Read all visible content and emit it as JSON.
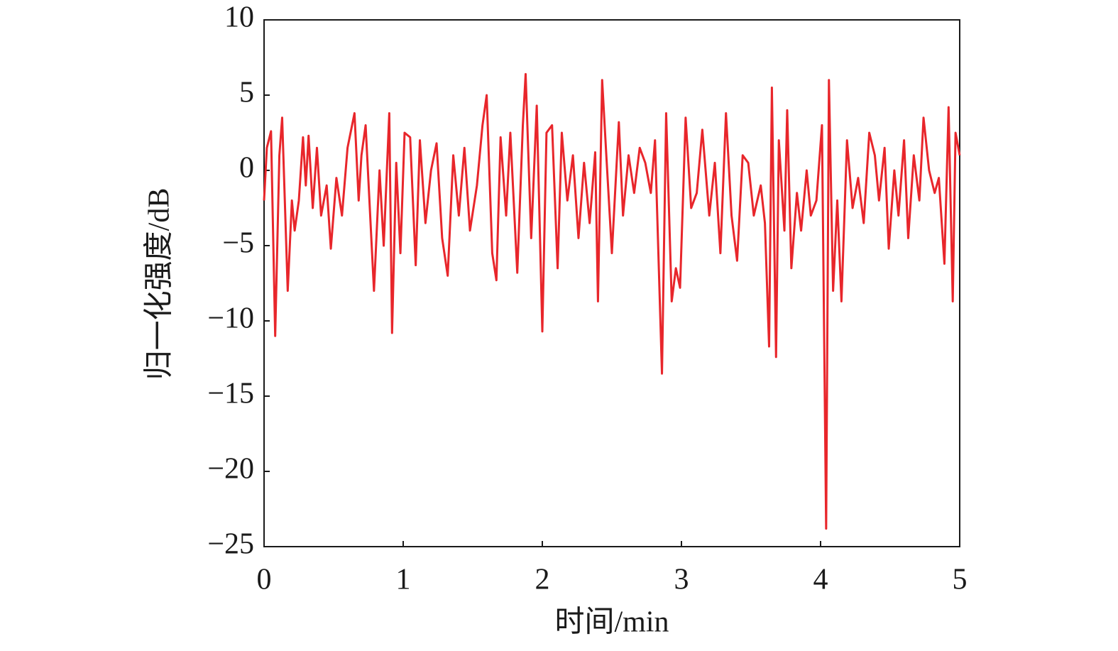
{
  "chart_data": {
    "type": "line",
    "xlabel": "时间/min",
    "ylabel": "归一化强度/dB",
    "color": "#e8262b",
    "x": [
      0,
      0.02,
      0.05,
      0.08,
      0.11,
      0.13,
      0.17,
      0.2,
      0.22,
      0.25,
      0.28,
      0.3,
      0.32,
      0.35,
      0.38,
      0.41,
      0.45,
      0.48,
      0.52,
      0.56,
      0.6,
      0.65,
      0.68,
      0.7,
      0.73,
      0.79,
      0.83,
      0.86,
      0.9,
      0.92,
      0.95,
      0.98,
      1.01,
      1.05,
      1.09,
      1.12,
      1.16,
      1.2,
      1.24,
      1.28,
      1.32,
      1.36,
      1.4,
      1.44,
      1.48,
      1.53,
      1.57,
      1.6,
      1.64,
      1.67,
      1.7,
      1.74,
      1.77,
      1.82,
      1.86,
      1.88,
      1.92,
      1.96,
      2.0,
      2.03,
      2.07,
      2.11,
      2.14,
      2.18,
      2.22,
      2.26,
      2.3,
      2.34,
      2.38,
      2.4,
      2.43,
      2.46,
      2.5,
      2.55,
      2.58,
      2.62,
      2.66,
      2.7,
      2.74,
      2.78,
      2.81,
      2.86,
      2.89,
      2.93,
      2.96,
      2.99,
      3.03,
      3.07,
      3.11,
      3.15,
      3.2,
      3.24,
      3.28,
      3.32,
      3.36,
      3.4,
      3.44,
      3.48,
      3.52,
      3.57,
      3.6,
      3.63,
      3.65,
      3.68,
      3.7,
      3.74,
      3.76,
      3.79,
      3.83,
      3.86,
      3.9,
      3.93,
      3.97,
      4.01,
      4.04,
      4.06,
      4.09,
      4.12,
      4.15,
      4.19,
      4.23,
      4.27,
      4.31,
      4.35,
      4.39,
      4.42,
      4.46,
      4.49,
      4.53,
      4.56,
      4.6,
      4.63,
      4.67,
      4.71,
      4.74,
      4.78,
      4.82,
      4.85,
      4.89,
      4.92,
      4.95,
      4.97,
      5.0
    ],
    "values": [
      -2,
      1.5,
      2.6,
      -11,
      1,
      3.5,
      -8,
      -2,
      -4,
      -2,
      2.2,
      -1,
      2.3,
      -2.5,
      1.5,
      -3,
      -1,
      -5.2,
      -0.5,
      -3,
      1.5,
      3.8,
      -2,
      1,
      3,
      -8,
      0,
      -5,
      3.8,
      -10.8,
      0.5,
      -5.5,
      2.5,
      2.2,
      -6.3,
      2,
      -3.5,
      0,
      1.8,
      -4.5,
      -7,
      1,
      -3,
      1.5,
      -4,
      -1,
      3,
      5,
      -5.5,
      -7.3,
      2.2,
      -3,
      2.5,
      -6.8,
      3,
      6.4,
      -4.5,
      4.3,
      -10.7,
      2.5,
      3,
      -6.5,
      2.5,
      -2,
      1,
      -4.5,
      0.5,
      -3.5,
      1.2,
      -8.7,
      6,
      1,
      -5.5,
      3.2,
      -3,
      1,
      -1.5,
      1.5,
      0.5,
      -1.5,
      2,
      -13.5,
      3.8,
      -8.7,
      -6.5,
      -7.8,
      3.5,
      -2.5,
      -1.5,
      2.7,
      -3,
      0.5,
      -5.5,
      3.8,
      -3,
      -6,
      1,
      0.5,
      -3,
      -1,
      -3.5,
      -11.7,
      5.5,
      -12.4,
      2,
      -4,
      4,
      -6.5,
      -1.5,
      -4,
      0,
      -3,
      -2,
      3,
      -23.8,
      6,
      -8,
      -2,
      -8.7,
      2,
      -2.5,
      -0.5,
      -3.5,
      2.5,
      1,
      -2,
      1.5,
      -5.2,
      0,
      -3,
      2,
      -4.5,
      1,
      -2,
      3.5,
      0,
      -1.5,
      -0.5,
      -6.2,
      4.2,
      -8.7,
      2.5,
      1
    ],
    "xlim": [
      0,
      5
    ],
    "xticks": [
      0,
      1,
      2,
      3,
      4,
      5
    ],
    "ylim": [
      -25,
      10
    ],
    "yticks": [
      {
        "value": -25,
        "label": "−25"
      },
      {
        "value": -20,
        "label": "−20"
      },
      {
        "value": -15,
        "label": "−15"
      },
      {
        "value": -10,
        "label": "−10"
      },
      {
        "value": -5,
        "label": "−5"
      },
      0,
      5,
      10
    ],
    "grid": false
  }
}
